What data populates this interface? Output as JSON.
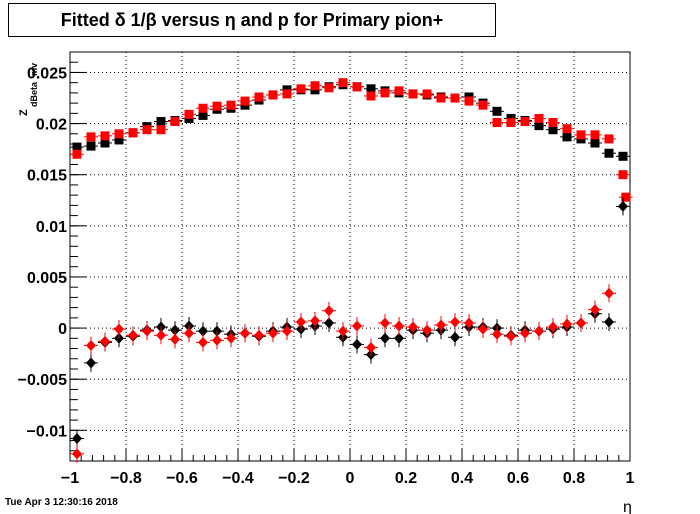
{
  "chart_data": {
    "type": "scatter",
    "title": "Fitted δ 1/β versus η and p for Primary pion+",
    "xlabel": "η",
    "ylabel": "Z_{dBeta}^{mv}",
    "ylabel_main": "Z",
    "ylabel_sub": "dBeta",
    "ylabel_sup": "mv",
    "xlim": [
      -1,
      1
    ],
    "ylim": [
      -0.013,
      0.027
    ],
    "grid": true,
    "x_ticks": [
      -1,
      -0.8,
      -0.6,
      -0.4,
      -0.2,
      0,
      0.2,
      0.4,
      0.6,
      0.8,
      1
    ],
    "x_tick_labels": [
      "−1",
      "−0.8",
      "−0.6",
      "−0.4",
      "−0.2",
      "0",
      "0.2",
      "0.4",
      "0.6",
      "0.8",
      "1"
    ],
    "y_ticks": [
      -0.01,
      -0.005,
      0,
      0.005,
      0.01,
      0.015,
      0.02,
      0.025
    ],
    "y_tick_labels": [
      "−0.01",
      "−0.005",
      "0",
      "0.005",
      "0.01",
      "0.015",
      "0.02",
      "0.025"
    ],
    "series": [
      {
        "color": "#000000",
        "marker": "square",
        "x": [
          -0.975,
          -0.925,
          -0.875,
          -0.825,
          -0.775,
          -0.725,
          -0.675,
          -0.625,
          -0.575,
          -0.525,
          -0.475,
          -0.425,
          -0.375,
          -0.325,
          -0.275,
          -0.225,
          -0.175,
          -0.125,
          -0.075,
          -0.025,
          0.025,
          0.075,
          0.125,
          0.175,
          0.225,
          0.275,
          0.325,
          0.375,
          0.425,
          0.475,
          0.525,
          0.575,
          0.625,
          0.675,
          0.725,
          0.775,
          0.825,
          0.875,
          0.925,
          0.975
        ],
        "y": [
          0.0177,
          0.0178,
          0.0181,
          0.0184,
          0.0191,
          0.0197,
          0.0202,
          0.0203,
          0.0205,
          0.0208,
          0.0214,
          0.0215,
          0.0218,
          0.0223,
          0.0228,
          0.0233,
          0.0233,
          0.0233,
          0.0236,
          0.0238,
          0.0236,
          0.0234,
          0.0232,
          0.023,
          0.0229,
          0.0228,
          0.0226,
          0.0225,
          0.0226,
          0.022,
          0.0212,
          0.0205,
          0.0203,
          0.0198,
          0.0194,
          0.0187,
          0.0185,
          0.0181,
          0.0171,
          0.0168
        ]
      },
      {
        "color": "#ff0000",
        "marker": "square",
        "x": [
          -0.975,
          -0.925,
          -0.875,
          -0.825,
          -0.775,
          -0.725,
          -0.675,
          -0.625,
          -0.575,
          -0.525,
          -0.475,
          -0.425,
          -0.375,
          -0.325,
          -0.275,
          -0.225,
          -0.175,
          -0.125,
          -0.075,
          -0.025,
          0.025,
          0.075,
          0.125,
          0.175,
          0.225,
          0.275,
          0.325,
          0.375,
          0.425,
          0.475,
          0.525,
          0.575,
          0.625,
          0.675,
          0.725,
          0.775,
          0.825,
          0.875,
          0.925,
          0.975,
          0.985
        ],
        "y": [
          0.017,
          0.0187,
          0.0188,
          0.019,
          0.0191,
          0.0194,
          0.0194,
          0.0202,
          0.0209,
          0.0215,
          0.0217,
          0.0218,
          0.0222,
          0.0226,
          0.0228,
          0.0229,
          0.0234,
          0.0237,
          0.0235,
          0.024,
          0.0236,
          0.0227,
          0.023,
          0.0232,
          0.0229,
          0.0229,
          0.0225,
          0.0225,
          0.0222,
          0.0218,
          0.0201,
          0.0201,
          0.0202,
          0.0205,
          0.0201,
          0.0195,
          0.0189,
          0.0189,
          0.0185,
          0.015,
          0.0128
        ]
      },
      {
        "color": "#000000",
        "marker": "diamond",
        "x": [
          -0.975,
          -0.925,
          -0.875,
          -0.825,
          -0.775,
          -0.725,
          -0.675,
          -0.625,
          -0.575,
          -0.525,
          -0.475,
          -0.425,
          -0.375,
          -0.325,
          -0.275,
          -0.225,
          -0.175,
          -0.125,
          -0.075,
          -0.025,
          0.025,
          0.075,
          0.125,
          0.175,
          0.225,
          0.275,
          0.325,
          0.375,
          0.425,
          0.475,
          0.525,
          0.575,
          0.625,
          0.675,
          0.725,
          0.775,
          0.825,
          0.875,
          0.925,
          0.975
        ],
        "y": [
          -0.0108,
          -0.0034,
          -0.0014,
          -0.001,
          -0.0008,
          -0.0002,
          0.0001,
          -0.0002,
          0.0002,
          -0.0003,
          -0.0003,
          -0.0006,
          -0.0005,
          -0.0008,
          -0.0003,
          0.0001,
          -0.0001,
          0.0002,
          0.0005,
          -0.0009,
          -0.0016,
          -0.0026,
          -0.001,
          -0.001,
          -0.0002,
          -0.0005,
          -0.0002,
          -0.0009,
          0.0001,
          0.0001,
          0.0,
          -0.0007,
          -0.0002,
          -0.0003,
          -0.0001,
          0.0001,
          0.0005,
          0.0014,
          0.0006,
          0.0119
        ]
      },
      {
        "color": "#ff0000",
        "marker": "diamond",
        "x": [
          -0.975,
          -0.925,
          -0.875,
          -0.825,
          -0.775,
          -0.725,
          -0.675,
          -0.625,
          -0.575,
          -0.525,
          -0.475,
          -0.425,
          -0.375,
          -0.325,
          -0.275,
          -0.225,
          -0.175,
          -0.125,
          -0.075,
          -0.025,
          0.025,
          0.075,
          0.125,
          0.175,
          0.225,
          0.275,
          0.325,
          0.375,
          0.425,
          0.475,
          0.525,
          0.575,
          0.625,
          0.675,
          0.725,
          0.775,
          0.825,
          0.875,
          0.925
        ],
        "y": [
          -0.0123,
          -0.0017,
          -0.0013,
          -0.0001,
          -0.0007,
          -0.0003,
          -0.0007,
          -0.0011,
          -0.0005,
          -0.0014,
          -0.0012,
          -0.001,
          -0.0005,
          -0.0007,
          -0.0005,
          -0.0003,
          0.0006,
          0.0007,
          0.0017,
          -0.0003,
          0.0002,
          -0.0019,
          0.0005,
          0.0002,
          0.0001,
          -0.0002,
          0.0003,
          0.0006,
          0.0005,
          -0.0001,
          -0.0006,
          -0.0008,
          -0.0005,
          -0.0003,
          0.0001,
          0.0004,
          0.0005,
          0.0018,
          0.0034
        ]
      }
    ]
  },
  "footer": {
    "datetime": "Tue Apr  3 12:30:16 2018"
  }
}
